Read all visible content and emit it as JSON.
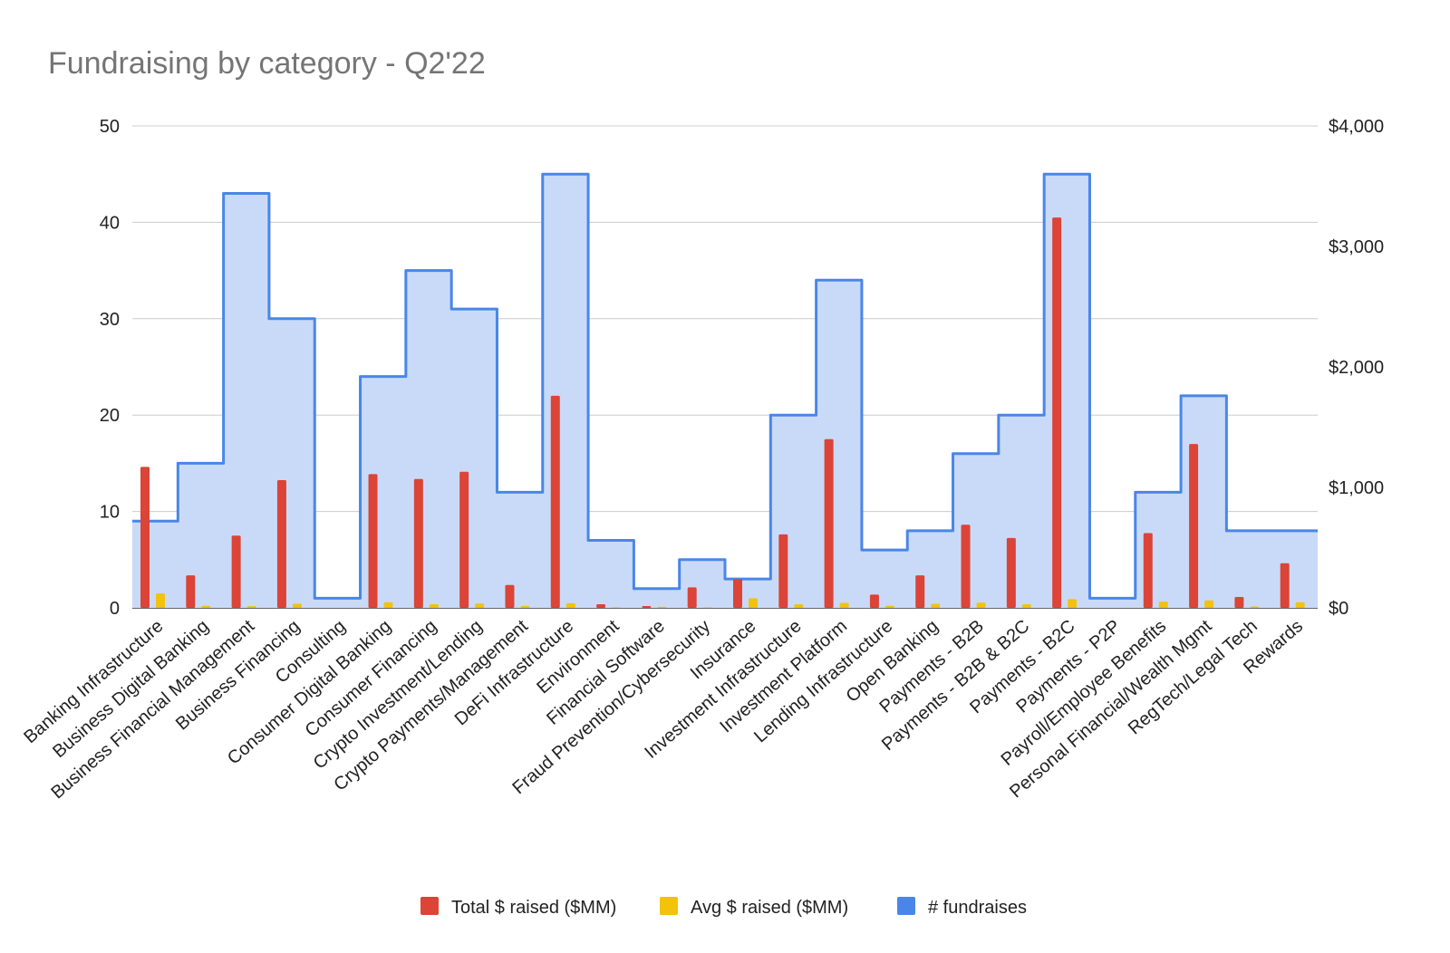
{
  "chart_data": {
    "type": "bar",
    "title": "Fundraising by category - Q2'22",
    "xlabel": "",
    "ylabel_left": "",
    "ylabel_right": "",
    "left_axis": {
      "ylim": [
        0,
        50
      ],
      "ticks": [
        "0",
        "10",
        "20",
        "30",
        "40",
        "50"
      ],
      "tick_values": [
        0,
        10,
        20,
        30,
        40,
        50
      ]
    },
    "right_axis": {
      "ylim": [
        0,
        4000
      ],
      "ticks": [
        "$0",
        "$1,000",
        "$2,000",
        "$3,000",
        "$4,000"
      ],
      "tick_values": [
        0,
        1000,
        2000,
        3000,
        4000
      ]
    },
    "grid": true,
    "legend_position": "bottom",
    "categories": [
      "Banking Infrastructure",
      "Business Digital Banking",
      "Business Financial Management",
      "Business Financing",
      "Consulting",
      "Consumer Digital Banking",
      "Consumer Financing",
      "Crypto Investment/Lending",
      "Crypto Payments/Management",
      "DeFi Infrastructure",
      "Environment",
      "Financial Software",
      "Fraud Prevention/Cybersecurity",
      "Insurance",
      "Investment Infrastructure",
      "Investment Platform",
      "Lending Infrastructure",
      "Open Banking",
      "Payments - B2B",
      "Payments - B2B & B2C",
      "Payments - B2C",
      "Payments - P2P",
      "Payroll/Employee Benefits",
      "Personal Financial/Wealth Mgmt",
      "RegTech/Legal Tech",
      "Rewards"
    ],
    "series": [
      {
        "name": "Total $ raised ($MM)",
        "kind": "bar",
        "axis": "right",
        "color": "#db4437",
        "values": [
          1170,
          270,
          600,
          1060,
          0,
          1110,
          1070,
          1130,
          190,
          1760,
          30,
          15,
          170,
          240,
          610,
          1400,
          110,
          270,
          690,
          580,
          3240,
          0,
          620,
          1360,
          90,
          370
        ]
      },
      {
        "name": "Avg $ raised ($MM)",
        "kind": "bar",
        "axis": "right",
        "color": "#f4c20d",
        "values": [
          120,
          18,
          14,
          35,
          0,
          46,
          30,
          36,
          16,
          39,
          4,
          8,
          4,
          80,
          30,
          41,
          18,
          34,
          43,
          29,
          72,
          0,
          52,
          62,
          11,
          46
        ]
      },
      {
        "name": "# fundraises",
        "kind": "stepped-area",
        "axis": "left",
        "color": "#4a86e8",
        "fill": "#c9daf8",
        "values": [
          9,
          15,
          43,
          30,
          1,
          24,
          35,
          31,
          12,
          45,
          7,
          2,
          5,
          3,
          20,
          34,
          6,
          8,
          16,
          20,
          45,
          1,
          12,
          22,
          8,
          8
        ]
      }
    ]
  }
}
